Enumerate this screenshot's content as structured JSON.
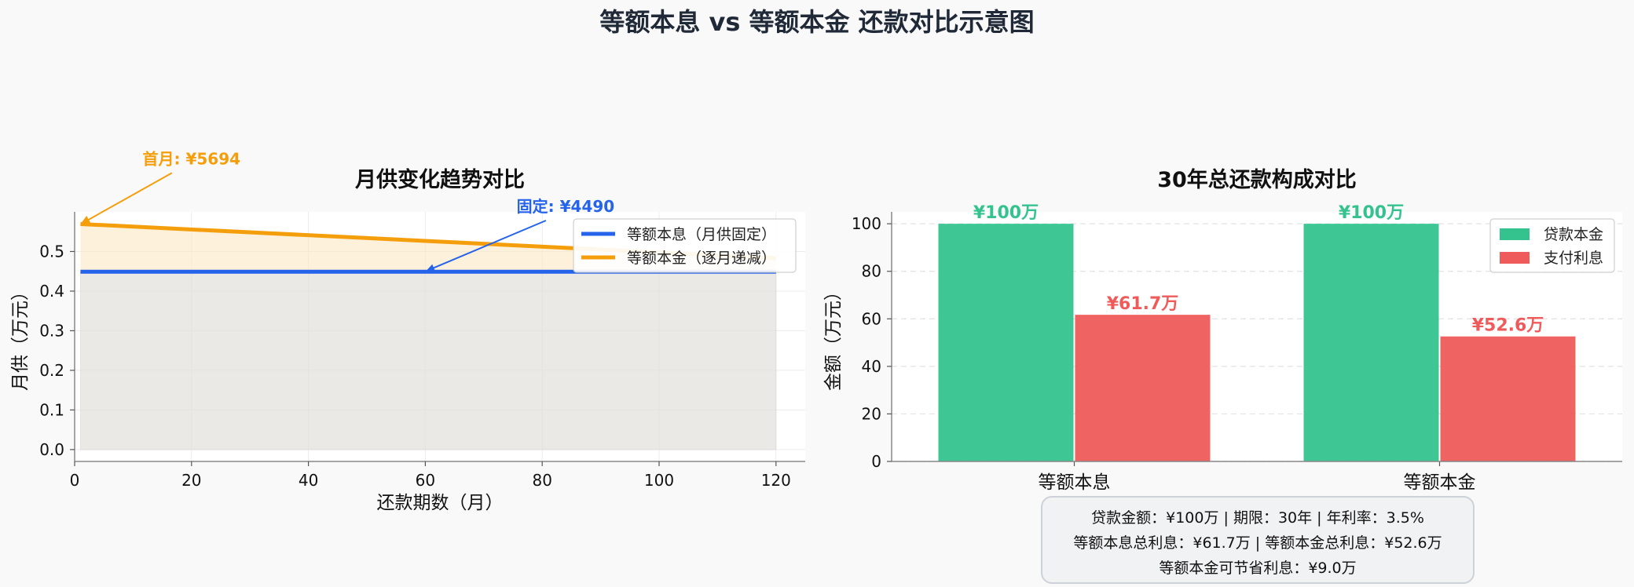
{
  "title": "等额本息 vs 等额本金 还款对比示意图",
  "chart_data": [
    {
      "type": "line",
      "title": "月供变化趋势对比",
      "xlabel": "还款期数（月）",
      "ylabel": "月供（万元）",
      "xlim": [
        0,
        125
      ],
      "ylim": [
        -0.03,
        0.6
      ],
      "xticks": [
        0,
        20,
        40,
        60,
        80,
        100,
        120
      ],
      "yticks": [
        0.0,
        0.1,
        0.2,
        0.3,
        0.4,
        0.5
      ],
      "grid": true,
      "legend_position": "top-right",
      "series": [
        {
          "name": "等额本息（月供固定）",
          "color": "#2563eb",
          "x": [
            1,
            120
          ],
          "y": [
            0.449,
            0.449
          ]
        },
        {
          "name": "等额本金（逐月递减）",
          "color": "#f59e0b",
          "x": [
            1,
            120
          ],
          "y": [
            0.5694,
            0.4832
          ]
        }
      ],
      "annotations": [
        {
          "label": "首月: ",
          "value": "¥5694",
          "color": "#f59e0b",
          "point": [
            1,
            0.5694
          ],
          "text_at": [
            20,
            0.72
          ]
        },
        {
          "label": "固定: ",
          "value": "¥4490",
          "color": "#2563eb",
          "point": [
            60,
            0.449
          ],
          "text_at": [
            84,
            0.6
          ]
        }
      ]
    },
    {
      "type": "bar",
      "title": "30年总还款构成对比",
      "ylabel": "金额（万元）",
      "categories": [
        "等额本息",
        "等额本金"
      ],
      "ylim": [
        0,
        105
      ],
      "yticks": [
        0,
        20,
        40,
        60,
        80,
        100
      ],
      "grid": true,
      "legend_position": "top-right",
      "series": [
        {
          "name": "贷款本金",
          "color": "#34c38f",
          "values": [
            100,
            100
          ],
          "labels": [
            "¥100万",
            "¥100万"
          ]
        },
        {
          "name": "支付利息",
          "color": "#ef5b5b",
          "values": [
            61.7,
            52.6
          ],
          "labels": [
            "¥61.7万",
            "¥52.6万"
          ]
        }
      ]
    }
  ],
  "summary": {
    "line1": "贷款金额：¥100万  |  期限：30年  |  年利率：3.5%",
    "line2": "等额本息总利息：¥61.7万  |  等额本金总利息：¥52.6万",
    "line3": "等额本金可节省利息：¥9.0万"
  }
}
